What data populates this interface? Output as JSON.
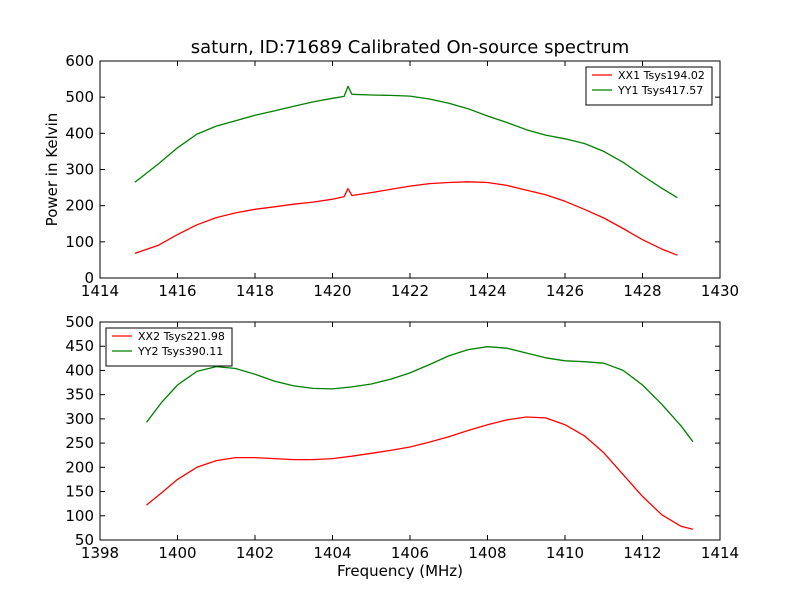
{
  "figure_title": "saturn, ID:71689 Calibrated On-source spectrum",
  "chart_data": [
    {
      "type": "line",
      "title": "saturn, ID:71689 Calibrated On-source spectrum",
      "xlabel": "",
      "ylabel": "Power in Kelvin",
      "xlim": [
        1414,
        1430
      ],
      "ylim": [
        0,
        600
      ],
      "xticks": [
        "1414",
        "1416",
        "1418",
        "1420",
        "1422",
        "1424",
        "1426",
        "1428",
        "1430"
      ],
      "yticks": [
        "0",
        "100",
        "200",
        "300",
        "400",
        "500",
        "600"
      ],
      "grid": false,
      "legend_position": "top-right",
      "series": [
        {
          "name": "XX1 Tsys194.02",
          "color": "#ff0000",
          "x": [
            1414.9,
            1415.5,
            1416.0,
            1416.5,
            1417.0,
            1417.5,
            1418.0,
            1418.5,
            1419.0,
            1419.5,
            1420.0,
            1420.3,
            1420.4,
            1420.5,
            1421.0,
            1421.5,
            1422.0,
            1422.5,
            1423.0,
            1423.5,
            1424.0,
            1424.5,
            1425.0,
            1425.5,
            1426.0,
            1426.5,
            1427.0,
            1427.5,
            1428.0,
            1428.5,
            1428.9
          ],
          "y": [
            68,
            90,
            120,
            147,
            167,
            180,
            190,
            197,
            204,
            210,
            218,
            225,
            247,
            228,
            236,
            245,
            254,
            261,
            264,
            266,
            264,
            256,
            243,
            230,
            212,
            190,
            166,
            137,
            106,
            80,
            63
          ]
        },
        {
          "name": "YY1 Tsys417.57",
          "color": "#008000",
          "x": [
            1414.9,
            1415.5,
            1416.0,
            1416.5,
            1417.0,
            1417.5,
            1418.0,
            1418.5,
            1419.0,
            1419.5,
            1420.0,
            1420.3,
            1420.4,
            1420.5,
            1421.0,
            1421.5,
            1422.0,
            1422.5,
            1423.0,
            1423.5,
            1424.0,
            1424.5,
            1425.0,
            1425.5,
            1426.0,
            1426.5,
            1427.0,
            1427.5,
            1428.0,
            1428.5,
            1428.9
          ],
          "y": [
            265,
            315,
            360,
            398,
            420,
            435,
            450,
            462,
            475,
            487,
            497,
            502,
            530,
            508,
            506,
            505,
            503,
            495,
            483,
            468,
            448,
            430,
            410,
            395,
            385,
            372,
            350,
            320,
            283,
            248,
            222
          ]
        }
      ]
    },
    {
      "type": "line",
      "title": "",
      "xlabel": "Frequency (MHz)",
      "ylabel": "",
      "xlim": [
        1398,
        1414
      ],
      "ylim": [
        50,
        500
      ],
      "xticks": [
        "1398",
        "1400",
        "1402",
        "1404",
        "1406",
        "1408",
        "1410",
        "1412",
        "1414"
      ],
      "yticks": [
        "50",
        "100",
        "150",
        "200",
        "250",
        "300",
        "350",
        "400",
        "450",
        "500"
      ],
      "grid": false,
      "legend_position": "top-left",
      "series": [
        {
          "name": "XX2 Tsys221.98",
          "color": "#ff0000",
          "x": [
            1399.2,
            1399.6,
            1400.0,
            1400.5,
            1401.0,
            1401.5,
            1402.0,
            1402.5,
            1403.0,
            1403.5,
            1404.0,
            1404.5,
            1405.0,
            1405.5,
            1406.0,
            1406.5,
            1407.0,
            1407.5,
            1408.0,
            1408.5,
            1409.0,
            1409.5,
            1410.0,
            1410.5,
            1411.0,
            1411.5,
            1412.0,
            1412.5,
            1413.0,
            1413.3
          ],
          "y": [
            122,
            148,
            175,
            200,
            214,
            220,
            220,
            218,
            216,
            216,
            218,
            223,
            229,
            235,
            242,
            252,
            263,
            276,
            288,
            298,
            304,
            302,
            288,
            265,
            230,
            185,
            140,
            102,
            78,
            72
          ]
        },
        {
          "name": "YY2 Tsys390.11",
          "color": "#008000",
          "x": [
            1399.2,
            1399.6,
            1400.0,
            1400.5,
            1401.0,
            1401.5,
            1402.0,
            1402.5,
            1403.0,
            1403.5,
            1404.0,
            1404.5,
            1405.0,
            1405.5,
            1406.0,
            1406.5,
            1407.0,
            1407.5,
            1408.0,
            1408.5,
            1409.0,
            1409.5,
            1410.0,
            1410.5,
            1411.0,
            1411.5,
            1412.0,
            1412.5,
            1413.0,
            1413.3
          ],
          "y": [
            293,
            335,
            370,
            398,
            408,
            404,
            392,
            378,
            368,
            363,
            362,
            366,
            372,
            382,
            395,
            412,
            430,
            443,
            449,
            446,
            436,
            426,
            420,
            418,
            415,
            400,
            370,
            330,
            285,
            253
          ]
        }
      ]
    }
  ]
}
